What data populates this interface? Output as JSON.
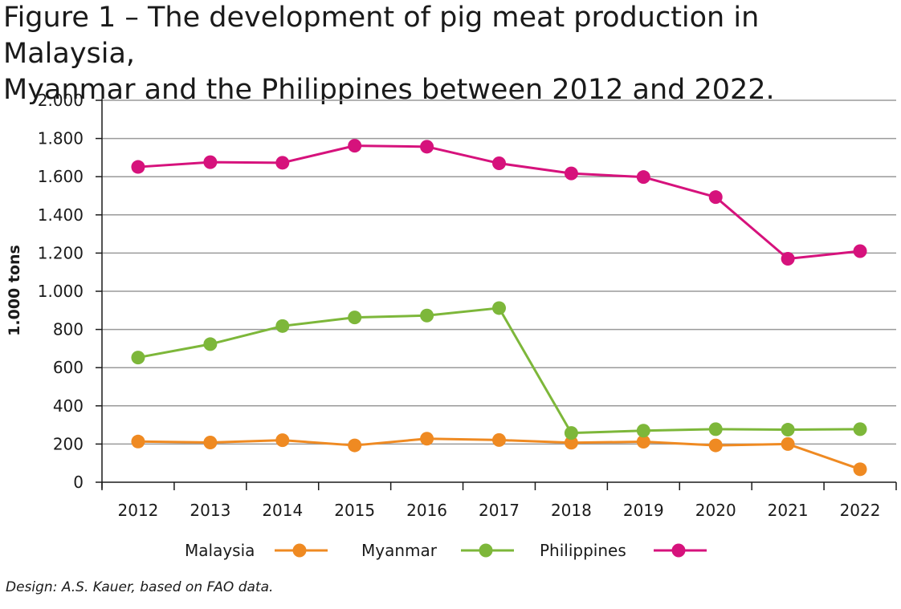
{
  "title_line1": "Figure 1 – The development of pig meat production in Malaysia,",
  "title_line2": "Myanmar and the Philippines between 2012 and 2022.",
  "credit": "Design: A.S. Kauer, based on FAO data.",
  "colors": {
    "malaysia": "#ef8a22",
    "myanmar": "#7db73a",
    "philippines": "#d6127c",
    "grid": "#9a9a9a",
    "axis": "#1a1a1a"
  },
  "chart_data": {
    "type": "line",
    "title": "Figure 1 – The development of pig meat production in Malaysia, Myanmar and the Philippines between 2012 and 2022.",
    "xlabel": "",
    "ylabel": "1.000 tons",
    "x": [
      "2012",
      "2013",
      "2014",
      "2015",
      "2016",
      "2017",
      "2018",
      "2019",
      "2020",
      "2021",
      "2022"
    ],
    "ylim": [
      0,
      2000
    ],
    "yticks": [
      0,
      200,
      400,
      600,
      800,
      1000,
      1200,
      1400,
      1600,
      1800,
      2000
    ],
    "ytick_labels": [
      "0",
      "200",
      "400",
      "600",
      "800",
      "1.000",
      "1.200",
      "1.400",
      "1.600",
      "1.800",
      "2.000"
    ],
    "grid": true,
    "legend_position": "bottom",
    "series": [
      {
        "name": "Malaysia",
        "color": "#ef8a22",
        "values": [
          213,
          208,
          220,
          193,
          228,
          221,
          207,
          212,
          193,
          200,
          68
        ]
      },
      {
        "name": "Myanmar",
        "color": "#7db73a",
        "values": [
          653,
          723,
          818,
          863,
          873,
          912,
          258,
          270,
          278,
          275,
          278
        ]
      },
      {
        "name": "Philippines",
        "color": "#d6127c",
        "values": [
          1651,
          1676,
          1673,
          1762,
          1757,
          1670,
          1617,
          1598,
          1493,
          1170,
          1210
        ]
      }
    ]
  }
}
